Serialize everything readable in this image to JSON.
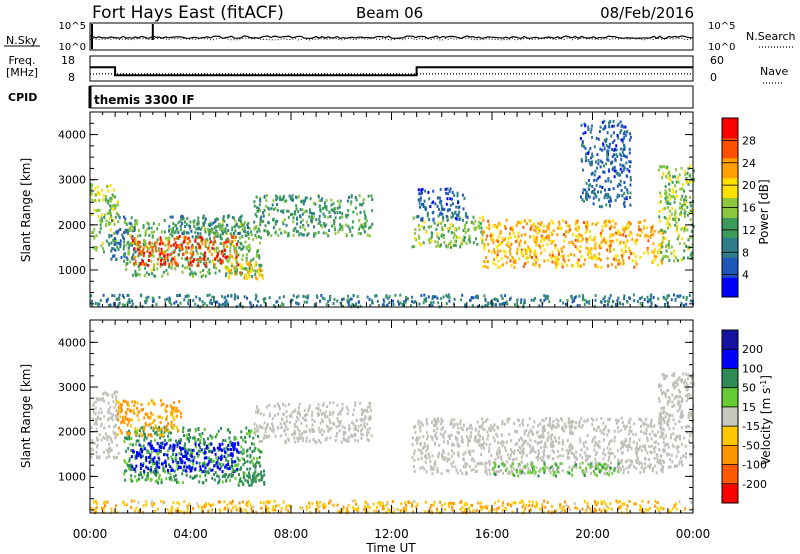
{
  "header": {
    "station": "Fort Hays East (fitACF)",
    "beam": "Beam 06",
    "date": "08/Feb/2016"
  },
  "param_panels": {
    "nsky_label": "N.Sky",
    "nsearch_label": "N.Search",
    "nsky_ticks": [
      "10^5",
      "10^0"
    ],
    "nsearch_ticks": [
      "10^5",
      "10^0"
    ],
    "freq_label_1": "Freq.",
    "freq_label_2": "[MHz]",
    "freq_ticks": [
      "18",
      "8"
    ],
    "nave_label": "Nave",
    "nave_ticks": [
      "60",
      "0"
    ],
    "cpid_label": "CPID",
    "cpid_text": "themis 3300 IF"
  },
  "colors": {
    "power_scale": [
      "#0000ff",
      "#1f57b8",
      "#2e7d8a",
      "#3c9a5a",
      "#8cc63c",
      "#ffe000",
      "#ffa000",
      "#ff5000",
      "#ff0000"
    ],
    "velocity_scale": [
      "#1414a0",
      "#0000ff",
      "#2e8b57",
      "#66cc33",
      "#c8c8c0",
      "#ffc800",
      "#ff9600",
      "#ff5a00",
      "#ff0000"
    ],
    "ground_scatter": "#c0c0b8"
  },
  "chart_data": [
    {
      "type": "line",
      "title": "N.Sky / N.Search",
      "x_range_hours": [
        0,
        24
      ],
      "ylim_log10": [
        0,
        5
      ]
    },
    {
      "type": "line",
      "title": "Freq. / Nave",
      "x_range_hours": [
        0,
        24
      ],
      "series": [
        {
          "name": "Freq.",
          "x": [
            0,
            1,
            1,
            13,
            13,
            24
          ],
          "values": [
            13.5,
            13.5,
            10.3,
            10.3,
            13.5,
            13.5
          ]
        },
        {
          "name": "Nave",
          "x": [
            0,
            24
          ],
          "values": [
            17,
            17
          ]
        }
      ],
      "ylim_left": [
        8,
        18
      ],
      "ylim_right": [
        0,
        60
      ]
    },
    {
      "type": "heatmap",
      "xlabel": "",
      "ylabel": "Slant Range [km]",
      "colorbar_label": "Power [dB]",
      "colorbar_ticks": [
        "28",
        "24",
        "20",
        "16",
        "12",
        "8",
        "4"
      ],
      "xlim_hours": [
        0,
        24
      ],
      "ylim_km": [
        180,
        4500
      ],
      "yticks": [
        "4000",
        "3000",
        "2000",
        "1000"
      ],
      "regions": [
        {
          "t0": 0.0,
          "t1": 1.1,
          "r0": 1400,
          "r1": 2900,
          "power": 16
        },
        {
          "t0": 0.8,
          "t1": 1.8,
          "r0": 1200,
          "r1": 2200,
          "power": 8
        },
        {
          "t0": 1.3,
          "t1": 6.8,
          "r0": 850,
          "r1": 2100,
          "power": 14
        },
        {
          "t0": 1.6,
          "t1": 5.9,
          "r0": 1100,
          "r1": 1750,
          "power": 27
        },
        {
          "t0": 5.4,
          "t1": 6.9,
          "r0": 800,
          "r1": 1200,
          "power": 21
        },
        {
          "t0": 3.0,
          "t1": 6.3,
          "r0": 1800,
          "r1": 2200,
          "power": 10
        },
        {
          "t0": 6.5,
          "t1": 11.2,
          "r0": 1750,
          "r1": 2650,
          "power": 12
        },
        {
          "t0": 12.8,
          "t1": 15.6,
          "r0": 1500,
          "r1": 2200,
          "power": 15
        },
        {
          "t0": 15.6,
          "t1": 22.8,
          "r0": 1050,
          "r1": 2100,
          "power": 22
        },
        {
          "t0": 22.6,
          "t1": 24.0,
          "r0": 1200,
          "r1": 3300,
          "power": 16
        },
        {
          "t0": 13.0,
          "t1": 15.0,
          "r0": 2100,
          "r1": 2800,
          "power": 6
        },
        {
          "t0": 19.5,
          "t1": 21.5,
          "r0": 2400,
          "r1": 4300,
          "power": 7
        },
        {
          "t0": 0.0,
          "t1": 24.0,
          "r0": 180,
          "r1": 450,
          "power": 9
        }
      ]
    },
    {
      "type": "heatmap",
      "xlabel": "Time UT",
      "ylabel": "Slant Range [km]",
      "colorbar_label": "Velocity [m s^-1]",
      "colorbar_ticks": [
        "200",
        "100",
        "50",
        "15",
        "-15",
        "-50",
        "-100",
        "-200"
      ],
      "xlim_hours": [
        0,
        24
      ],
      "xticks": [
        "00:00",
        "04:00",
        "08:00",
        "12:00",
        "16:00",
        "20:00",
        "00:00"
      ],
      "ylim_km": [
        180,
        4500
      ],
      "yticks": [
        "4000",
        "3000",
        "2000",
        "1000"
      ],
      "regions": [
        {
          "t0": 0.0,
          "t1": 1.1,
          "r0": 1400,
          "r1": 2900,
          "velocity": 0,
          "ground": true
        },
        {
          "t0": 1.3,
          "t1": 6.8,
          "r0": 850,
          "r1": 2100,
          "velocity": 60
        },
        {
          "t0": 1.6,
          "t1": 5.9,
          "r0": 1100,
          "r1": 1750,
          "velocity": 180
        },
        {
          "t0": 5.4,
          "t1": 6.9,
          "r0": 800,
          "r1": 1200,
          "velocity": 70
        },
        {
          "t0": 1.0,
          "t1": 3.6,
          "r0": 1900,
          "r1": 2700,
          "velocity": -60
        },
        {
          "t0": 6.5,
          "t1": 11.2,
          "r0": 1750,
          "r1": 2650,
          "velocity": 0,
          "ground": true
        },
        {
          "t0": 12.8,
          "t1": 23.0,
          "r0": 1050,
          "r1": 2300,
          "velocity": 0,
          "ground": true
        },
        {
          "t0": 16.0,
          "t1": 21.0,
          "r0": 1000,
          "r1": 1300,
          "velocity": 40
        },
        {
          "t0": 22.6,
          "t1": 24.0,
          "r0": 1200,
          "r1": 3300,
          "velocity": 0,
          "ground": true
        },
        {
          "t0": 0.0,
          "t1": 24.0,
          "r0": 180,
          "r1": 450,
          "velocity": -40
        }
      ]
    }
  ]
}
